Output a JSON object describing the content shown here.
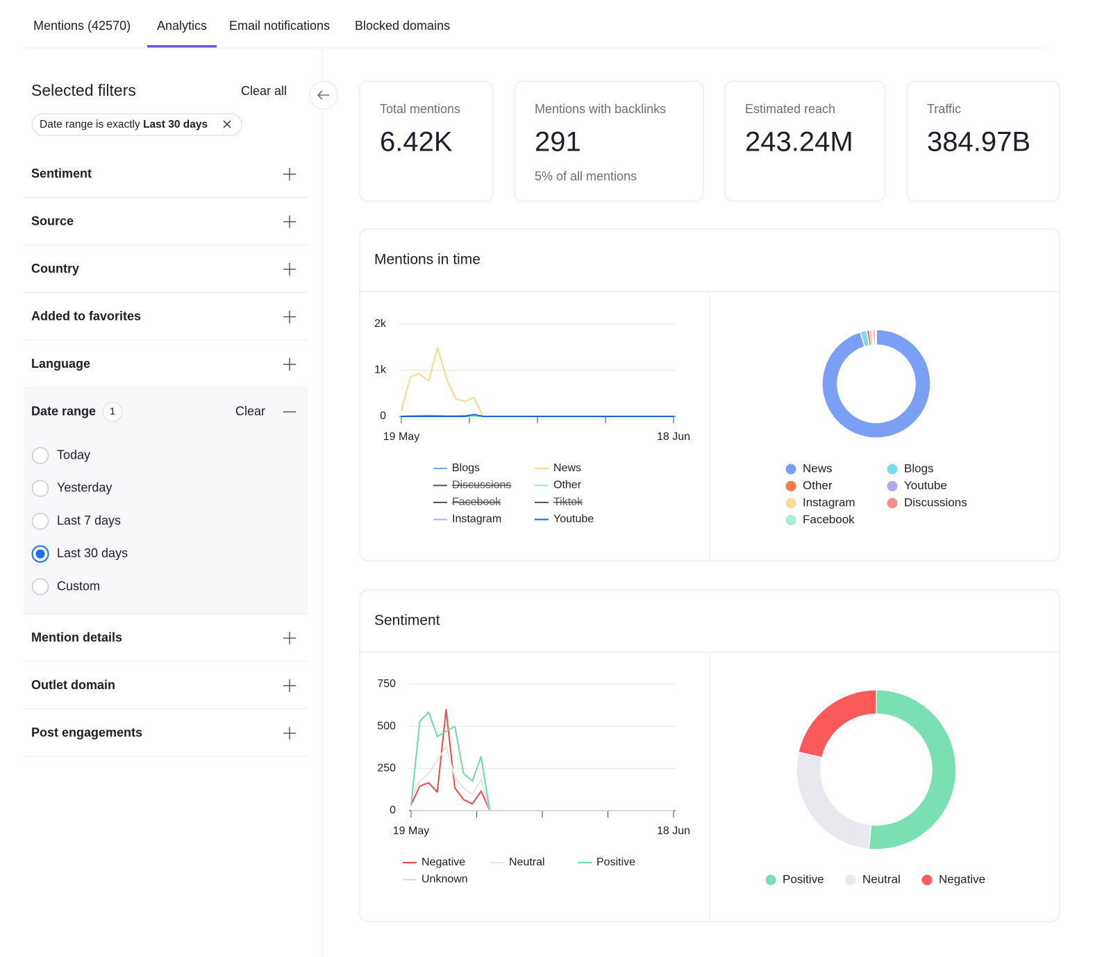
{
  "tabs": [
    {
      "label": "Mentions (42570)"
    },
    {
      "label": "Analytics",
      "active": true
    },
    {
      "label": "Email notifications"
    },
    {
      "label": "Blocked domains"
    }
  ],
  "filters": {
    "title": "Selected filters",
    "clear_all": "Clear all",
    "chip": {
      "text": "Date range is exactly",
      "value": "Last 30 days"
    },
    "sections": [
      {
        "label": "Sentiment"
      },
      {
        "label": "Source"
      },
      {
        "label": "Country"
      },
      {
        "label": "Added to favorites"
      },
      {
        "label": "Language"
      },
      {
        "label": "Date range",
        "count": 1,
        "clear": "Clear",
        "expanded": true,
        "options": [
          {
            "label": "Today"
          },
          {
            "label": "Yesterday"
          },
          {
            "label": "Last 7 days"
          },
          {
            "label": "Last 30 days",
            "checked": true
          },
          {
            "label": "Custom"
          }
        ]
      },
      {
        "label": "Mention details"
      },
      {
        "label": "Outlet domain"
      },
      {
        "label": "Post engagements"
      }
    ]
  },
  "stats": [
    {
      "label": "Total mentions",
      "value": "6.42K"
    },
    {
      "label": "Mentions with backlinks",
      "value": 291,
      "note": "5% of all mentions"
    },
    {
      "label": "Estimated reach",
      "value": "243.24M"
    },
    {
      "label": "Traffic",
      "value": "384.97B"
    }
  ],
  "mentions_in_time": {
    "title": "Mentions in time",
    "line_chart": {
      "type": "line",
      "categories": [
        "19 May",
        null,
        null,
        null,
        null,
        null,
        null,
        null,
        null,
        null,
        null,
        null,
        null,
        null,
        null,
        null,
        null,
        null,
        null,
        null,
        null,
        null,
        null,
        null,
        null,
        null,
        null,
        null,
        null,
        null,
        "18 Jun"
      ],
      "ylim": [
        0,
        2000
      ],
      "yticks": [
        0,
        {
          "value": 1000,
          "label": "1k"
        },
        {
          "value": 2000,
          "label": "2k"
        }
      ],
      "grid": true,
      "series": [
        {
          "name": "Blogs",
          "color": "#7aa2f7",
          "values": [
            0,
            10,
            15,
            20,
            15,
            10,
            10,
            15,
            30,
            0,
            0,
            0,
            0,
            0,
            0,
            0,
            0,
            0,
            0,
            0,
            0,
            0,
            0,
            0,
            0,
            0,
            0,
            0,
            0,
            0,
            0
          ]
        },
        {
          "name": "Discussions",
          "color": "#555555",
          "hidden": true
        },
        {
          "name": "Facebook",
          "color": "#555555",
          "hidden": true
        },
        {
          "name": "Instagram",
          "color": "#b9a7f5",
          "values": [
            0,
            0,
            0,
            0,
            0,
            0,
            0,
            0,
            0,
            0,
            0,
            0,
            0,
            0,
            0,
            0,
            0,
            0,
            0,
            0,
            0,
            0,
            0,
            0,
            0,
            0,
            0,
            0,
            0,
            0,
            0
          ]
        },
        {
          "name": "News",
          "color": "#f5d88e",
          "values": [
            120,
            860,
            920,
            770,
            1490,
            800,
            380,
            320,
            410,
            0,
            0,
            0,
            0,
            0,
            0,
            0,
            0,
            0,
            0,
            0,
            0,
            0,
            0,
            0,
            0,
            0,
            0,
            0,
            0,
            0,
            0
          ]
        },
        {
          "name": "Other",
          "color": "#9be8cf",
          "values": [
            0,
            0,
            0,
            0,
            0,
            0,
            0,
            0,
            0,
            0,
            0,
            0,
            0,
            0,
            0,
            0,
            0,
            0,
            0,
            0,
            0,
            0,
            0,
            0,
            0,
            0,
            0,
            0,
            0,
            0,
            0
          ]
        },
        {
          "name": "Tiktok",
          "color": "#555555",
          "hidden": true
        },
        {
          "name": "Youtube",
          "color": "#1a5fe0",
          "values": [
            0,
            0,
            0,
            0,
            0,
            0,
            0,
            0,
            40,
            0,
            0,
            0,
            0,
            0,
            0,
            0,
            0,
            0,
            0,
            0,
            0,
            0,
            0,
            0,
            0,
            0,
            0,
            0,
            0,
            0,
            0
          ]
        }
      ]
    },
    "donut": {
      "type": "donut",
      "categories": [
        "News",
        "Blogs",
        "Other",
        "Youtube",
        "Instagram",
        "Discussions",
        "Facebook"
      ],
      "values": [
        95.2,
        1.9,
        0.9,
        0.6,
        0.4,
        0.6,
        0.4
      ],
      "colors": [
        "#7b9ff5",
        "#7dd8ea",
        "#f97a4a",
        "#b4a6f5",
        "#f7dc95",
        "#f58a8a",
        "#a8ecd1"
      ]
    }
  },
  "sentiment": {
    "title": "Sentiment",
    "line_chart": {
      "type": "line",
      "categories": [
        "19 May",
        null,
        null,
        null,
        null,
        null,
        null,
        null,
        null,
        null,
        null,
        null,
        null,
        null,
        null,
        null,
        null,
        null,
        null,
        null,
        null,
        null,
        null,
        null,
        null,
        null,
        null,
        null,
        null,
        null,
        "18 Jun"
      ],
      "ylim": [
        0,
        750
      ],
      "yticks": [
        0,
        250,
        500,
        750
      ],
      "grid": true,
      "series": [
        {
          "name": "Negative",
          "color": "#f04848",
          "values": [
            35,
            145,
            165,
            110,
            600,
            135,
            65,
            40,
            115,
            0,
            0,
            0,
            0,
            0,
            0,
            0,
            0,
            0,
            0,
            0,
            0,
            0,
            0,
            0,
            0,
            0,
            0,
            0,
            0,
            0,
            0
          ]
        },
        {
          "name": "Neutral",
          "color": "#e3e3ea",
          "values": [
            75,
            175,
            220,
            300,
            380,
            200,
            135,
            95,
            185,
            0,
            0,
            0,
            0,
            0,
            0,
            0,
            0,
            0,
            0,
            0,
            0,
            0,
            0,
            0,
            0,
            0,
            0,
            0,
            0,
            0,
            0
          ]
        },
        {
          "name": "Positive",
          "color": "#6ed8ad",
          "values": [
            30,
            530,
            585,
            440,
            470,
            500,
            220,
            175,
            320,
            0,
            0,
            0,
            0,
            0,
            0,
            0,
            0,
            0,
            0,
            0,
            0,
            0,
            0,
            0,
            0,
            0,
            0,
            0,
            0,
            0,
            0
          ]
        },
        {
          "name": "Unknown",
          "color": "#d6d6dc",
          "values": [
            0,
            0,
            0,
            0,
            0,
            0,
            0,
            0,
            0,
            0,
            0,
            0,
            0,
            0,
            0,
            0,
            0,
            0,
            0,
            0,
            0,
            0,
            0,
            0,
            0,
            0,
            0,
            0,
            0,
            0,
            0
          ]
        }
      ]
    },
    "donut": {
      "type": "donut",
      "categories": [
        "Positive",
        "Neutral",
        "Negative"
      ],
      "values": [
        51.5,
        27,
        21.5
      ],
      "colors": [
        "#7adfb3",
        "#e8e9ee",
        "#fb5a5a"
      ]
    }
  }
}
